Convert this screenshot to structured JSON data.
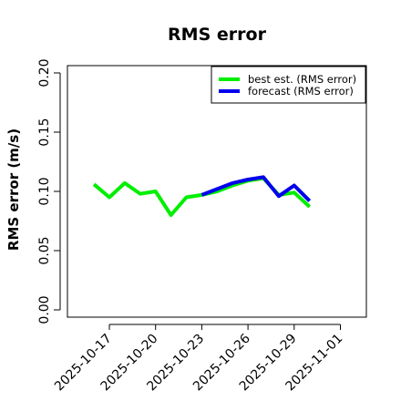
{
  "chart_data": {
    "type": "line",
    "title": "RMS error",
    "xlabel": "",
    "ylabel": "RMS error (m/s)",
    "ylim": [
      0.0,
      0.2
    ],
    "yticks": [
      "0.00",
      "0.05",
      "0.10",
      "0.15",
      "0.20"
    ],
    "xticks": [
      "2025-10-17",
      "2025-10-20",
      "2025-10-23",
      "2025-10-26",
      "2025-10-29",
      "2025-11-01"
    ],
    "highlighted_xtick": "2025-10-23",
    "highlight_color": "#228B22",
    "grid": false,
    "legend_position": "top-right",
    "series": [
      {
        "name": "best est. (RMS error)",
        "color": "#00EE00",
        "x": [
          "2025-10-16",
          "2025-10-17",
          "2025-10-18",
          "2025-10-19",
          "2025-10-20",
          "2025-10-21",
          "2025-10-22",
          "2025-10-23",
          "2025-10-24",
          "2025-10-25",
          "2025-10-26",
          "2025-10-27",
          "2025-10-28",
          "2025-10-29",
          "2025-10-30"
        ],
        "values": [
          0.106,
          0.095,
          0.107,
          0.098,
          0.1,
          0.08,
          0.095,
          0.097,
          0.1,
          0.105,
          0.109,
          0.111,
          0.097,
          0.099,
          0.087
        ]
      },
      {
        "name": "forecast (RMS error)",
        "color": "#0000EE",
        "x": [
          "2025-10-23",
          "2025-10-24",
          "2025-10-25",
          "2025-10-26",
          "2025-10-27",
          "2025-10-28",
          "2025-10-29",
          "2025-10-30"
        ],
        "values": [
          0.097,
          0.102,
          0.107,
          0.11,
          0.112,
          0.096,
          0.105,
          0.092
        ]
      }
    ]
  }
}
